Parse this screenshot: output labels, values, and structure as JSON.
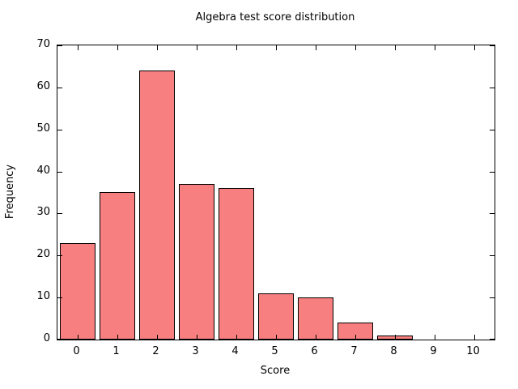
{
  "chart_data": {
    "type": "bar",
    "title": "Algebra test score distribution",
    "xlabel": "Score",
    "ylabel": "Frequency",
    "categories": [
      "0",
      "1",
      "2",
      "3",
      "4",
      "5",
      "6",
      "7",
      "8",
      "9",
      "10"
    ],
    "values": [
      23,
      35,
      64,
      37,
      36,
      11,
      10,
      4,
      1,
      0,
      0
    ],
    "ylim": [
      0,
      70
    ],
    "ytick_step": 10,
    "grid": false,
    "legend": "none",
    "bar_color": "#f87f7f",
    "bar_border_color": "#000000",
    "axis_color": "#000000",
    "background_color": "#ffffff"
  }
}
